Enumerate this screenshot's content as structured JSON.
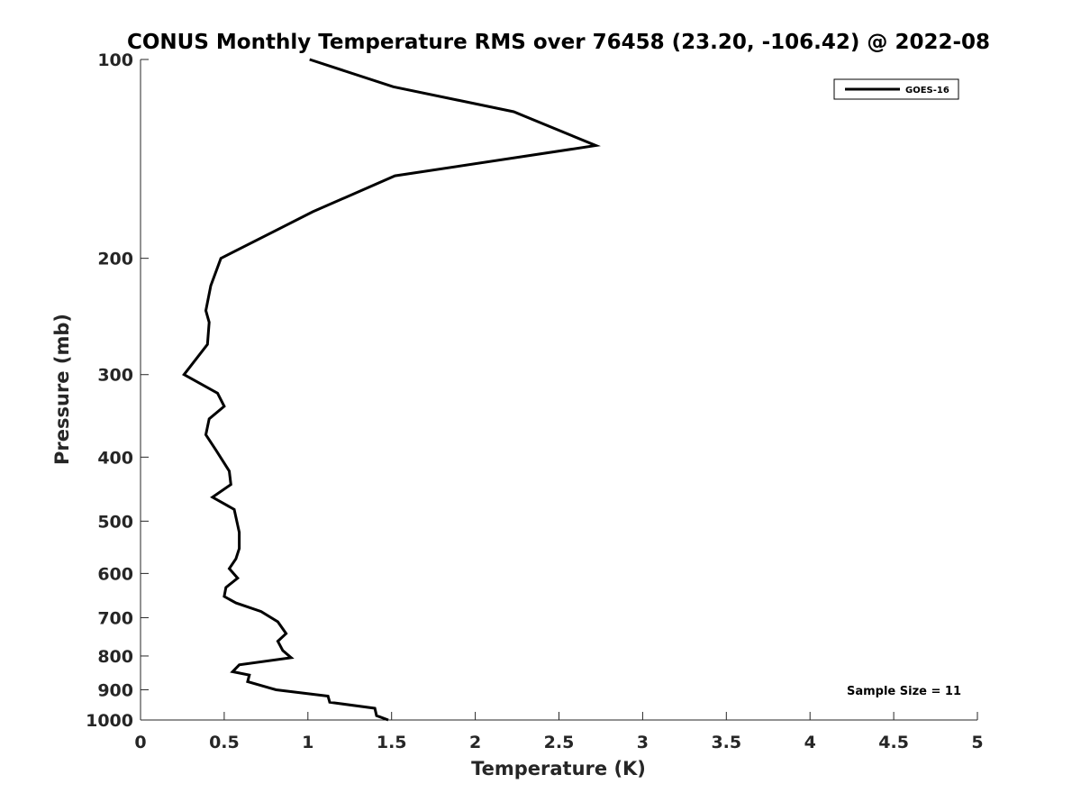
{
  "chart_data": {
    "type": "line",
    "title": "CONUS Monthly Temperature RMS over 76458 (23.20, -106.42) @ 2022-08",
    "xlabel": "Temperature (K)",
    "ylabel": "Pressure (mb)",
    "xlim": [
      0,
      5
    ],
    "ylim": [
      1000,
      100
    ],
    "y_scale": "log",
    "y_reversed": true,
    "grid": false,
    "legend_position": "top-right",
    "x_ticks": [
      0,
      0.5,
      1,
      1.5,
      2,
      2.5,
      3,
      3.5,
      4,
      4.5,
      5
    ],
    "x_tick_labels": [
      "0",
      "0.5",
      "1",
      "1.5",
      "2",
      "2.5",
      "3",
      "3.5",
      "4",
      "4.5",
      "5"
    ],
    "y_ticks": [
      100,
      200,
      300,
      400,
      500,
      600,
      700,
      800,
      900,
      1000
    ],
    "y_tick_labels": [
      "100",
      "200",
      "300",
      "400",
      "500",
      "600",
      "700",
      "800",
      "900",
      "1000"
    ],
    "series": [
      {
        "name": "GOES-16",
        "color": "#000000",
        "points": [
          [
            1.01,
            100
          ],
          [
            1.51,
            110
          ],
          [
            2.23,
            120
          ],
          [
            2.72,
            135
          ],
          [
            1.52,
            150
          ],
          [
            1.03,
            170
          ],
          [
            0.48,
            200
          ],
          [
            0.42,
            220
          ],
          [
            0.39,
            240
          ],
          [
            0.41,
            250
          ],
          [
            0.4,
            270
          ],
          [
            0.26,
            300
          ],
          [
            0.46,
            320
          ],
          [
            0.5,
            335
          ],
          [
            0.41,
            350
          ],
          [
            0.39,
            370
          ],
          [
            0.45,
            390
          ],
          [
            0.53,
            420
          ],
          [
            0.54,
            440
          ],
          [
            0.43,
            460
          ],
          [
            0.56,
            480
          ],
          [
            0.59,
            520
          ],
          [
            0.59,
            550
          ],
          [
            0.57,
            570
          ],
          [
            0.53,
            590
          ],
          [
            0.58,
            610
          ],
          [
            0.51,
            630
          ],
          [
            0.5,
            650
          ],
          [
            0.57,
            665
          ],
          [
            0.72,
            685
          ],
          [
            0.82,
            710
          ],
          [
            0.87,
            740
          ],
          [
            0.82,
            760
          ],
          [
            0.85,
            785
          ],
          [
            0.9,
            805
          ],
          [
            0.59,
            825
          ],
          [
            0.55,
            845
          ],
          [
            0.65,
            855
          ],
          [
            0.64,
            875
          ],
          [
            0.81,
            900
          ],
          [
            1.12,
            920
          ],
          [
            1.13,
            940
          ],
          [
            1.4,
            960
          ],
          [
            1.41,
            985
          ],
          [
            1.48,
            1000
          ]
        ]
      }
    ],
    "legend": [
      "GOES-16"
    ],
    "annotation": "Sample Size = 11"
  }
}
